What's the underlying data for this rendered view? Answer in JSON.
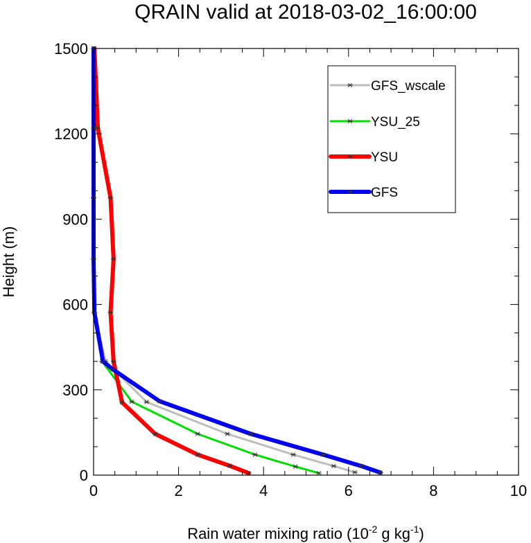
{
  "chart_data": {
    "type": "line",
    "title": "QRAIN valid at 2018-03-02_16:00:00",
    "xlabel": {
      "prefix": "Rain water mixing ratio (10",
      "sup1": "-2",
      "mid": " g kg",
      "sup2": "-1",
      "suffix": ")"
    },
    "ylabel": "Height (m)",
    "xlim": [
      0,
      10
    ],
    "ylim": [
      0,
      1500
    ],
    "xticks": [
      0,
      2,
      4,
      6,
      8,
      10
    ],
    "yticks": [
      0,
      300,
      600,
      900,
      1200,
      1500
    ],
    "xticklabels": [
      "0",
      "2",
      "4",
      "6",
      "8",
      "10"
    ],
    "yticklabels": [
      "0",
      "300",
      "600",
      "900",
      "1200",
      "1500"
    ],
    "grid": false,
    "legend_position": "top-right",
    "series": [
      {
        "name": "GFS_wscale",
        "color": "#bdbdbd",
        "linewidth": "thin",
        "points": [
          [
            6.15,
            10
          ],
          [
            5.65,
            32
          ],
          [
            4.7,
            72
          ],
          [
            3.15,
            145
          ],
          [
            1.25,
            257
          ],
          [
            0.28,
            400
          ],
          [
            0.02,
            572
          ],
          [
            0.0,
            760
          ],
          [
            0.0,
            975
          ],
          [
            0.0,
            1220
          ],
          [
            0.0,
            1500
          ]
        ]
      },
      {
        "name": "YSU_25",
        "color": "#00e000",
        "linewidth": "thin",
        "points": [
          [
            5.3,
            7
          ],
          [
            4.75,
            30
          ],
          [
            3.8,
            72
          ],
          [
            2.45,
            145
          ],
          [
            0.9,
            258
          ],
          [
            0.2,
            400
          ],
          [
            0.02,
            572
          ],
          [
            0.0,
            760
          ],
          [
            0.0,
            975
          ],
          [
            0.0,
            1220
          ],
          [
            0.0,
            1500
          ]
        ]
      },
      {
        "name": "YSU",
        "color": "#ff0000",
        "linewidth": "thick",
        "points": [
          [
            3.65,
            7
          ],
          [
            3.2,
            33
          ],
          [
            2.45,
            72
          ],
          [
            1.45,
            145
          ],
          [
            0.67,
            256
          ],
          [
            0.47,
            400
          ],
          [
            0.4,
            572
          ],
          [
            0.47,
            760
          ],
          [
            0.4,
            975
          ],
          [
            0.1,
            1220
          ],
          [
            0.02,
            1500
          ]
        ]
      },
      {
        "name": "GFS",
        "color": "#0000ee",
        "linewidth": "thick",
        "points": [
          [
            6.75,
            9
          ],
          [
            6.3,
            32
          ],
          [
            5.4,
            72
          ],
          [
            3.7,
            145
          ],
          [
            1.55,
            260
          ],
          [
            0.45,
            372
          ],
          [
            0.22,
            400
          ],
          [
            0.02,
            572
          ],
          [
            0.0,
            760
          ],
          [
            0.0,
            975
          ],
          [
            0.0,
            1220
          ],
          [
            0.0,
            1500
          ]
        ]
      }
    ]
  }
}
